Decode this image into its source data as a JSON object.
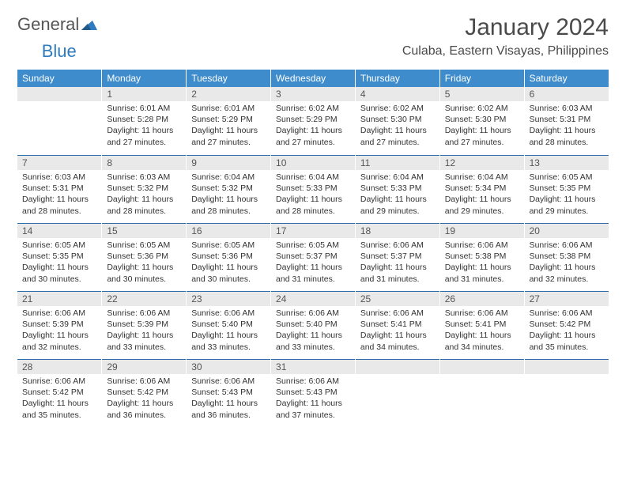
{
  "logo": {
    "text1": "General",
    "text2": "Blue"
  },
  "title": "January 2024",
  "location": "Culaba, Eastern Visayas, Philippines",
  "weekdays": [
    "Sunday",
    "Monday",
    "Tuesday",
    "Wednesday",
    "Thursday",
    "Friday",
    "Saturday"
  ],
  "colors": {
    "header_bg": "#3e8ccc",
    "header_text": "#ffffff",
    "daynum_bg": "#e9e9e9",
    "row_divider": "#2f6ea8",
    "body_text": "#333333",
    "title_text": "#4a4a4a"
  },
  "weeks": [
    [
      null,
      {
        "n": "1",
        "sr": "6:01 AM",
        "ss": "5:28 PM",
        "dl": "11 hours and 27 minutes."
      },
      {
        "n": "2",
        "sr": "6:01 AM",
        "ss": "5:29 PM",
        "dl": "11 hours and 27 minutes."
      },
      {
        "n": "3",
        "sr": "6:02 AM",
        "ss": "5:29 PM",
        "dl": "11 hours and 27 minutes."
      },
      {
        "n": "4",
        "sr": "6:02 AM",
        "ss": "5:30 PM",
        "dl": "11 hours and 27 minutes."
      },
      {
        "n": "5",
        "sr": "6:02 AM",
        "ss": "5:30 PM",
        "dl": "11 hours and 27 minutes."
      },
      {
        "n": "6",
        "sr": "6:03 AM",
        "ss": "5:31 PM",
        "dl": "11 hours and 28 minutes."
      }
    ],
    [
      {
        "n": "7",
        "sr": "6:03 AM",
        "ss": "5:31 PM",
        "dl": "11 hours and 28 minutes."
      },
      {
        "n": "8",
        "sr": "6:03 AM",
        "ss": "5:32 PM",
        "dl": "11 hours and 28 minutes."
      },
      {
        "n": "9",
        "sr": "6:04 AM",
        "ss": "5:32 PM",
        "dl": "11 hours and 28 minutes."
      },
      {
        "n": "10",
        "sr": "6:04 AM",
        "ss": "5:33 PM",
        "dl": "11 hours and 28 minutes."
      },
      {
        "n": "11",
        "sr": "6:04 AM",
        "ss": "5:33 PM",
        "dl": "11 hours and 29 minutes."
      },
      {
        "n": "12",
        "sr": "6:04 AM",
        "ss": "5:34 PM",
        "dl": "11 hours and 29 minutes."
      },
      {
        "n": "13",
        "sr": "6:05 AM",
        "ss": "5:35 PM",
        "dl": "11 hours and 29 minutes."
      }
    ],
    [
      {
        "n": "14",
        "sr": "6:05 AM",
        "ss": "5:35 PM",
        "dl": "11 hours and 30 minutes."
      },
      {
        "n": "15",
        "sr": "6:05 AM",
        "ss": "5:36 PM",
        "dl": "11 hours and 30 minutes."
      },
      {
        "n": "16",
        "sr": "6:05 AM",
        "ss": "5:36 PM",
        "dl": "11 hours and 30 minutes."
      },
      {
        "n": "17",
        "sr": "6:05 AM",
        "ss": "5:37 PM",
        "dl": "11 hours and 31 minutes."
      },
      {
        "n": "18",
        "sr": "6:06 AM",
        "ss": "5:37 PM",
        "dl": "11 hours and 31 minutes."
      },
      {
        "n": "19",
        "sr": "6:06 AM",
        "ss": "5:38 PM",
        "dl": "11 hours and 31 minutes."
      },
      {
        "n": "20",
        "sr": "6:06 AM",
        "ss": "5:38 PM",
        "dl": "11 hours and 32 minutes."
      }
    ],
    [
      {
        "n": "21",
        "sr": "6:06 AM",
        "ss": "5:39 PM",
        "dl": "11 hours and 32 minutes."
      },
      {
        "n": "22",
        "sr": "6:06 AM",
        "ss": "5:39 PM",
        "dl": "11 hours and 33 minutes."
      },
      {
        "n": "23",
        "sr": "6:06 AM",
        "ss": "5:40 PM",
        "dl": "11 hours and 33 minutes."
      },
      {
        "n": "24",
        "sr": "6:06 AM",
        "ss": "5:40 PM",
        "dl": "11 hours and 33 minutes."
      },
      {
        "n": "25",
        "sr": "6:06 AM",
        "ss": "5:41 PM",
        "dl": "11 hours and 34 minutes."
      },
      {
        "n": "26",
        "sr": "6:06 AM",
        "ss": "5:41 PM",
        "dl": "11 hours and 34 minutes."
      },
      {
        "n": "27",
        "sr": "6:06 AM",
        "ss": "5:42 PM",
        "dl": "11 hours and 35 minutes."
      }
    ],
    [
      {
        "n": "28",
        "sr": "6:06 AM",
        "ss": "5:42 PM",
        "dl": "11 hours and 35 minutes."
      },
      {
        "n": "29",
        "sr": "6:06 AM",
        "ss": "5:42 PM",
        "dl": "11 hours and 36 minutes."
      },
      {
        "n": "30",
        "sr": "6:06 AM",
        "ss": "5:43 PM",
        "dl": "11 hours and 36 minutes."
      },
      {
        "n": "31",
        "sr": "6:06 AM",
        "ss": "5:43 PM",
        "dl": "11 hours and 37 minutes."
      },
      null,
      null,
      null
    ]
  ],
  "labels": {
    "sunrise": "Sunrise:",
    "sunset": "Sunset:",
    "daylight": "Daylight:"
  }
}
